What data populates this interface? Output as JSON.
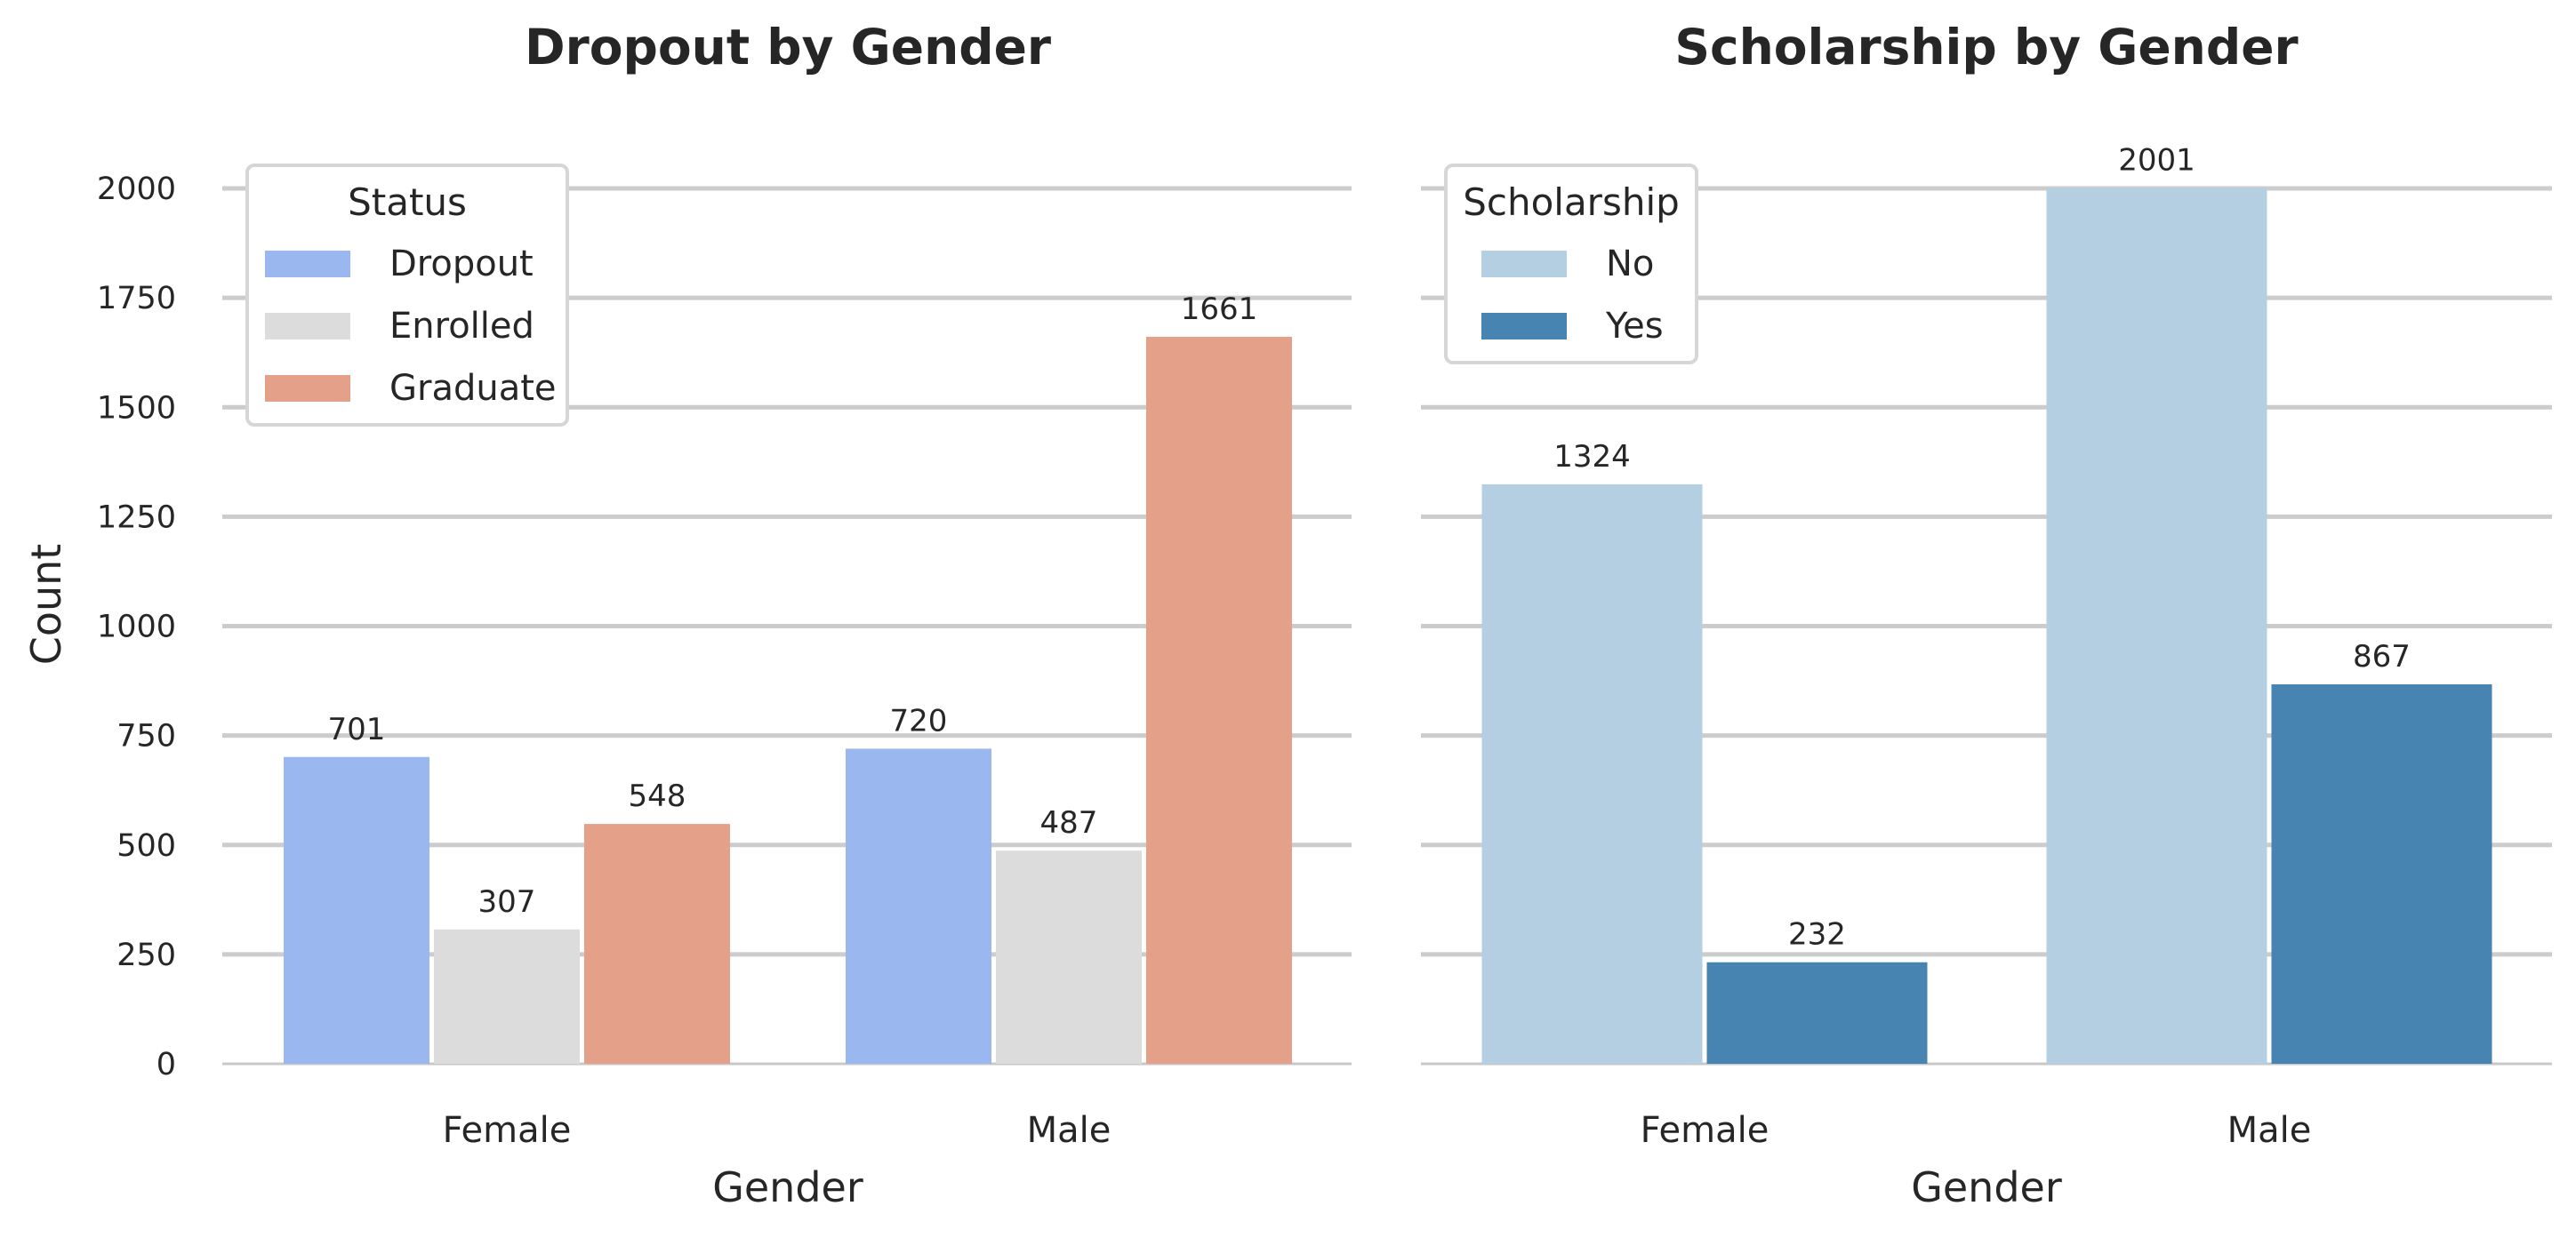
{
  "chart_data": [
    {
      "type": "bar",
      "title": "Dropout by Gender",
      "xlabel": "Gender",
      "ylabel": "Count",
      "ylim": [
        0,
        2000
      ],
      "yticks": [
        0,
        250,
        500,
        750,
        1000,
        1250,
        1500,
        1750,
        2000
      ],
      "grid": true,
      "categories": [
        "Female",
        "Male"
      ],
      "legend": {
        "title": "Status",
        "position": "top-left"
      },
      "series": [
        {
          "name": "Dropout",
          "color": "#9BB7EF",
          "values": [
            701,
            720
          ]
        },
        {
          "name": "Enrolled",
          "color": "#DCDCDC",
          "values": [
            307,
            487
          ]
        },
        {
          "name": "Graduate",
          "color": "#E4A089",
          "values": [
            548,
            1661
          ]
        }
      ]
    },
    {
      "type": "bar",
      "title": "Scholarship by Gender",
      "xlabel": "Gender",
      "ylabel": "",
      "ylim": [
        0,
        2000
      ],
      "yticks": [
        0,
        250,
        500,
        750,
        1000,
        1250,
        1500,
        1750,
        2000
      ],
      "grid": true,
      "categories": [
        "Female",
        "Male"
      ],
      "legend": {
        "title": "Scholarship",
        "position": "top-left"
      },
      "series": [
        {
          "name": "No",
          "color": "#B3CFE1",
          "values": [
            1324,
            2001
          ]
        },
        {
          "name": "Yes",
          "color": "#4884B1",
          "values": [
            232,
            867
          ]
        }
      ]
    }
  ]
}
